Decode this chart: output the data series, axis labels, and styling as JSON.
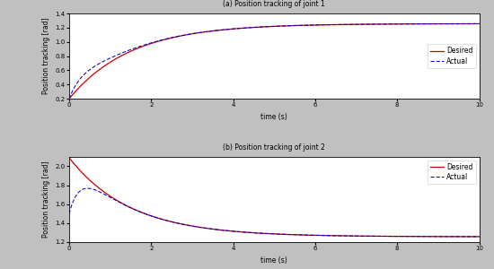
{
  "fig_width": 5.5,
  "fig_height": 3.0,
  "dpi": 100,
  "bg_color": "#c0c0c0",
  "panel_bg": "#ffffff",
  "plot1": {
    "title": "(a) Position tracking of joint 1",
    "xlabel": "time (s)",
    "ylabel": "Position tracking [rad]",
    "xlim": [
      0,
      10
    ],
    "ylim": [
      0.2,
      1.4
    ],
    "yticks": [
      0.2,
      0.4,
      0.6,
      0.8,
      1.0,
      1.2,
      1.4
    ],
    "xticks": [
      0,
      2,
      4,
      6,
      8,
      10
    ],
    "desired_start": 0.2,
    "desired_end": 1.2566,
    "desired_tau": 1.5,
    "actual_start": 0.2,
    "actual_dip_val": 0.55,
    "actual_dip_time": 0.38,
    "actual_end": 1.2566,
    "desired_color": "#cc0000",
    "actual_color": "#0000cc"
  },
  "plot2": {
    "title": "(b) Position tracking of joint 2",
    "xlabel": "time (s)",
    "ylabel": "Position tracking [rad]",
    "xlim": [
      0,
      10
    ],
    "ylim": [
      1.2,
      2.1
    ],
    "yticks": [
      1.2,
      1.4,
      1.6,
      1.8,
      2.0
    ],
    "xticks": [
      0,
      2,
      4,
      6,
      8,
      10
    ],
    "desired_start": 2.09,
    "desired_end": 1.2566,
    "desired_tau": 1.5,
    "actual_start": 1.5,
    "actual_peak_val": 1.75,
    "actual_peak_time": 0.3,
    "actual_end": 1.2566,
    "desired_color": "#cc0000",
    "actual_color": "#0000cc"
  },
  "fontsize_label": 5.5,
  "fontsize_title": 5.5,
  "fontsize_tick": 5.0,
  "fontsize_legend": 5.5
}
